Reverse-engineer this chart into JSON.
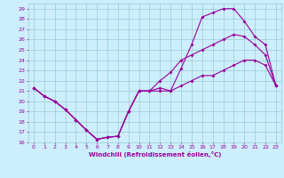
{
  "xlabel": "Windchill (Refroidissement éolien,°C)",
  "bg_color": "#cceeff",
  "grid_color": "#99cccc",
  "line_color": "#990099",
  "xlim": [
    -0.5,
    23.5
  ],
  "ylim": [
    16,
    29.5
  ],
  "xticks": [
    0,
    1,
    2,
    3,
    4,
    5,
    6,
    7,
    8,
    9,
    10,
    11,
    12,
    13,
    14,
    15,
    16,
    17,
    18,
    19,
    20,
    21,
    22,
    23
  ],
  "yticks": [
    16,
    17,
    18,
    19,
    20,
    21,
    22,
    23,
    24,
    25,
    26,
    27,
    28,
    29
  ],
  "line1_x": [
    0,
    1,
    2,
    3,
    4,
    5,
    6,
    7,
    8,
    9,
    10,
    11,
    12,
    13,
    14,
    15,
    16,
    17,
    18,
    19,
    20,
    21,
    22,
    23
  ],
  "line1_y": [
    21.3,
    20.5,
    20.0,
    19.2,
    18.2,
    17.2,
    16.3,
    16.5,
    16.6,
    19.0,
    21.0,
    21.0,
    21.3,
    21.0,
    23.2,
    25.5,
    28.2,
    28.6,
    29.0,
    29.0,
    27.8,
    26.3,
    25.5,
    21.5
  ],
  "line2_x": [
    0,
    1,
    2,
    3,
    4,
    5,
    6,
    7,
    8,
    9,
    10,
    11,
    12,
    13,
    14,
    15,
    16,
    17,
    18,
    19,
    20,
    21,
    22,
    23
  ],
  "line2_y": [
    21.3,
    20.5,
    20.0,
    19.2,
    18.2,
    17.2,
    16.3,
    16.5,
    16.6,
    19.0,
    21.0,
    21.0,
    22.0,
    22.8,
    24.0,
    24.5,
    25.0,
    25.5,
    26.0,
    26.5,
    26.3,
    25.5,
    24.5,
    21.5
  ],
  "line3_x": [
    0,
    1,
    2,
    3,
    4,
    5,
    6,
    7,
    8,
    9,
    10,
    11,
    12,
    13,
    14,
    15,
    16,
    17,
    18,
    19,
    20,
    21,
    22,
    23
  ],
  "line3_y": [
    21.3,
    20.5,
    20.0,
    19.2,
    18.2,
    17.2,
    16.3,
    16.5,
    16.6,
    19.0,
    21.0,
    21.0,
    21.0,
    21.0,
    21.5,
    22.0,
    22.5,
    22.5,
    23.0,
    23.5,
    24.0,
    24.0,
    23.5,
    21.5
  ]
}
